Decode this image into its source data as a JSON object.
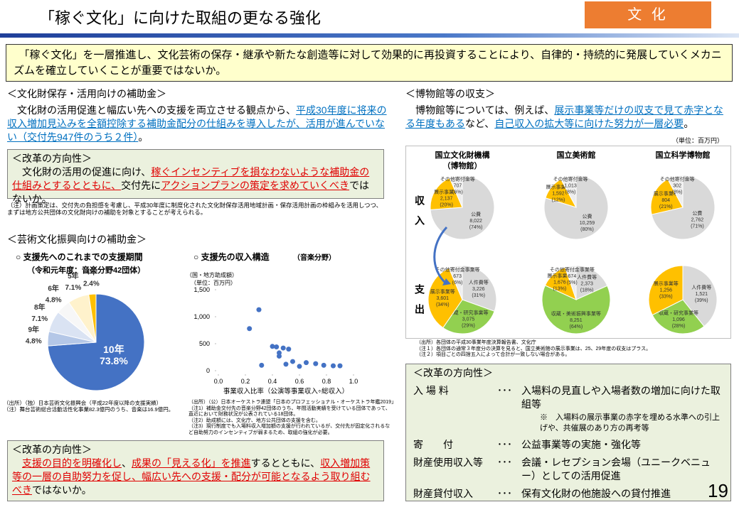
{
  "header": {
    "title": "「稼ぐ文化」に向けた取組の更なる強化",
    "tag": "文 化"
  },
  "intro": {
    "segments": [
      {
        "text": "　「稼ぐ文化」を一層推進し、文化芸術の保存・継承や新たな創造等に対して効果的に再投資することにより、自律的・持続的に発展していくメカニズムを確立していくことが重要ではないか。",
        "style": "plain"
      }
    ]
  },
  "heritage": {
    "heading": "＜文化財保存・活用向けの補助金＞",
    "segments": [
      {
        "text": "　文化財の活用促進と幅広い先への支援を両立させる観点から、",
        "style": "plain"
      },
      {
        "text": "平成30年度に将来の収入増加見込みを全額控除する補助金配分の仕組みを導入したが、活用が進んでいない（交付先947件のうち２件）",
        "style": "blue"
      },
      {
        "text": "。",
        "style": "plain"
      }
    ]
  },
  "heritage_reform": {
    "heading": "＜改革の方向性＞",
    "segments": [
      {
        "text": "　文化財の活用の促進に向け、",
        "style": "plain"
      },
      {
        "text": "稼ぐインセンティブを損なわないような補助金の仕組みとするとともに、",
        "style": "red"
      },
      {
        "text": "交付先に",
        "style": "plain"
      },
      {
        "text": "アクションプランの策定を求めていくべき",
        "style": "red"
      },
      {
        "text": "ではないか。",
        "style": "plain"
      }
    ],
    "note": "（注）計画策定は、交付先の負担感を考慮し、平成30年度に制度化された文化財保存活用地域計画・保存活用計画の枠組みを活用しつつ、まずは地方公共団体の文化財向けの補助を対象とすることが考えられる。"
  },
  "arts": {
    "heading": "＜芸術文化振興向けの補助金＞",
    "sources_left": [
      "（出所）（独）日本芸術文化振興会（平成22年度以降の支援実績）",
      "（注）舞台芸術総合活動活性化事業82.3億円のうち、音楽は16.9億円。"
    ],
    "sources_right": [
      "（出所）（公）日本オーケストラ連盟「日本のプロフェッショナル・オーケストラ年鑑2019」",
      "（注1）補助金交付先の音楽分野42団体のうち、年間活動実績を受けている団体であって、直近において財務状況が公表されている18団体。",
      "（注2）助成額には、文化庁、地方公共団体の支援を含む。",
      "（注3）現行制度でも入場料収入増加額の支援が行われているが、交付先が固定化されるなど自助努力のインセンティブが弱まるため、取組の強化が必要。"
    ]
  },
  "arts_reform": {
    "heading": "＜改革の方向性＞",
    "segments": [
      {
        "text": "　",
        "style": "plain"
      },
      {
        "text": "支援の目的を明確化し",
        "style": "red"
      },
      {
        "text": "、",
        "style": "plain"
      },
      {
        "text": "成果の「見える化」を推進",
        "style": "red"
      },
      {
        "text": "するとともに、",
        "style": "plain"
      },
      {
        "text": "収入増加策等の一層の自助努力を促し、幅広い先への支援・配分が可能となるよう取り組むべき",
        "style": "red"
      },
      {
        "text": "ではないか。",
        "style": "plain"
      }
    ]
  },
  "museum": {
    "heading": "＜博物館等の収支＞",
    "segments": [
      {
        "text": "　博物館等については、例えば、",
        "style": "plain"
      },
      {
        "text": "展示事業等だけの収支で見て赤字となる年度もある",
        "style": "blue"
      },
      {
        "text": "など、",
        "style": "plain"
      },
      {
        "text": "自己収入の拡大等に向けた努力が一層必要",
        "style": "blue"
      },
      {
        "text": "。",
        "style": "plain"
      }
    ],
    "unit": "（単位：百万円）",
    "columns": [
      [
        "国立文化財機構",
        "（博物館）"
      ],
      [
        "国立美術館"
      ],
      [
        "国立科学博物館"
      ]
    ],
    "rows": [
      "収入",
      "支出"
    ],
    "sources": [
      "（出所）各団体の平成30事業年度決算報告書、文化庁",
      "（注１）各団体の通常３年度分の決算を見ると、国立美術館の展示事業は、25、29年度の収支はプラス。",
      "（注２）項目ごとの四捨五入によって合計が一致しない場合がある。"
    ]
  },
  "museum_reform": {
    "heading": "＜改革の方向性＞",
    "items": [
      {
        "label": "入 場 料",
        "dots": "･･･",
        "text": "入場料の見直しや入場者数の増加に向けた取組等"
      },
      {
        "label": "寄　　付",
        "dots": "･･･",
        "text": "公益事業等の実施・強化等"
      },
      {
        "label": "財産使用収入等",
        "dots": "･･･",
        "text": "会議・レセプション会場（ユニークベニュー）としての活用促進"
      },
      {
        "label": "財産貸付収入",
        "dots": "･･･",
        "text": "保有文化財の他施設への貸付推進"
      }
    ],
    "note": "※　入場料の展示事業の赤字を埋める水準への引上げや、共催展のあり方の再考等"
  },
  "page_number": "19",
  "chart_data": [
    {
      "type": "pie",
      "title": "○ 支援先へのこれまでの支援期間",
      "subtitle": "（令和元年度：音楽分野42団体）",
      "categories": [
        "10年",
        "9年",
        "8年",
        "6年",
        "5年",
        "4年"
      ],
      "values": [
        73.8,
        4.8,
        7.1,
        4.8,
        7.1,
        2.4
      ],
      "value_labels": [
        "73.8%",
        "4.8%",
        "7.1%",
        "4.8%",
        "7.1%",
        "2.4%"
      ],
      "colors": [
        "#4472c4",
        "#b4c7e7",
        "#dae3f3",
        "#f7f7f7",
        "#fff2cc",
        "#ffc000"
      ]
    },
    {
      "type": "scatter",
      "title": "○ 支援先の収入構造",
      "subtitle": "（音楽分野）",
      "y_label": "（国・地方助成額）",
      "y_unit": "（単位：百万円）",
      "x_label": "事業収入比率（公演等事業収入÷総収入）",
      "x": [
        0.23,
        0.3,
        0.32,
        0.4,
        0.43,
        0.45,
        0.45,
        0.48,
        0.5,
        0.52,
        0.55,
        0.6,
        0.65,
        0.72,
        0.78,
        0.85,
        0.9
      ],
      "y": [
        780,
        1130,
        100,
        450,
        440,
        330,
        270,
        420,
        120,
        400,
        170,
        80,
        150,
        130,
        100,
        90,
        90
      ],
      "color": "#4472c4",
      "xlim": [
        0,
        1
      ],
      "ylim": [
        0,
        1500
      ],
      "xticks": [
        {
          "value": 0,
          "label": "0.0"
        },
        0.2,
        0.4,
        0.6,
        0.8,
        {
          "value": 1,
          "label": "1.0"
        }
      ],
      "yticks": [
        0,
        500,
        {
          "value": 1000,
          "label": "1,000"
        },
        {
          "value": 1500,
          "label": "1,500"
        }
      ]
    },
    {
      "type": "pie",
      "categories": [
        "公費",
        "展示事業等",
        "その他寄付金等"
      ],
      "values": [
        8022,
        2137,
        707
      ],
      "value_labels": [
        "8,022",
        "2,137",
        "707"
      ],
      "percent_labels": [
        "(74%)",
        "(20%)",
        "(6%)"
      ],
      "colors": [
        "#d9d9d9",
        "#ffc000",
        "#eeeeee"
      ]
    },
    {
      "type": "pie",
      "categories": [
        "公費",
        "展示事業等",
        "その他寄付金等"
      ],
      "values": [
        10259,
        1592,
        1013
      ],
      "value_labels": [
        "10,259",
        "1,592",
        "1,013"
      ],
      "percent_labels": [
        "(80%)",
        "(12%)",
        "(8%)"
      ],
      "colors": [
        "#d9d9d9",
        "#ffc000",
        "#eeeeee"
      ]
    },
    {
      "type": "pie",
      "categories": [
        "公費",
        "展示事業等",
        "その他寄付金等"
      ],
      "values": [
        2762,
        804,
        302
      ],
      "value_labels": [
        "2,762",
        "804",
        "302"
      ],
      "percent_labels": [
        "(71%)",
        "(21%)",
        "(8%)"
      ],
      "colors": [
        "#d9d9d9",
        "#ffc000",
        "#eeeeee"
      ]
    },
    {
      "type": "pie",
      "categories": [
        "人件費等",
        "収蔵・研究事業等",
        "展示事業等",
        "その他寄付金事業等"
      ],
      "values": [
        3226,
        3075,
        3601,
        673
      ],
      "value_labels": [
        "3,226",
        "3,075",
        "3,601",
        "673"
      ],
      "percent_labels": [
        "(31%)",
        "(29%)",
        "(34%)",
        "(6%)"
      ],
      "colors": [
        "#d9d9d9",
        "#92d050",
        "#ffc000",
        "#eeeeee"
      ]
    },
    {
      "type": "pie",
      "categories": [
        "人件費等",
        "収蔵・美術振興事業等",
        "展示事業等",
        "その他寄付金事業等"
      ],
      "values": [
        2373,
        8251,
        1676,
        674
      ],
      "value_labels": [
        "2,373",
        "8,251",
        "1,676",
        "674"
      ],
      "percent_labels": [
        "(18%)",
        "(64%)",
        "(13%)",
        "(5%)"
      ],
      "colors": [
        "#d9d9d9",
        "#92d050",
        "#ffc000",
        "#eeeeee"
      ]
    },
    {
      "type": "pie",
      "categories": [
        "人件費等",
        "収蔵・研究事業等",
        "展示事業等"
      ],
      "values": [
        1521,
        1096,
        1256
      ],
      "value_labels": [
        "1,521",
        "1,096",
        "1,256"
      ],
      "percent_labels": [
        "(39%)",
        "(28%)",
        "(33%)"
      ],
      "colors": [
        "#d9d9d9",
        "#92d050",
        "#ffc000"
      ]
    }
  ]
}
